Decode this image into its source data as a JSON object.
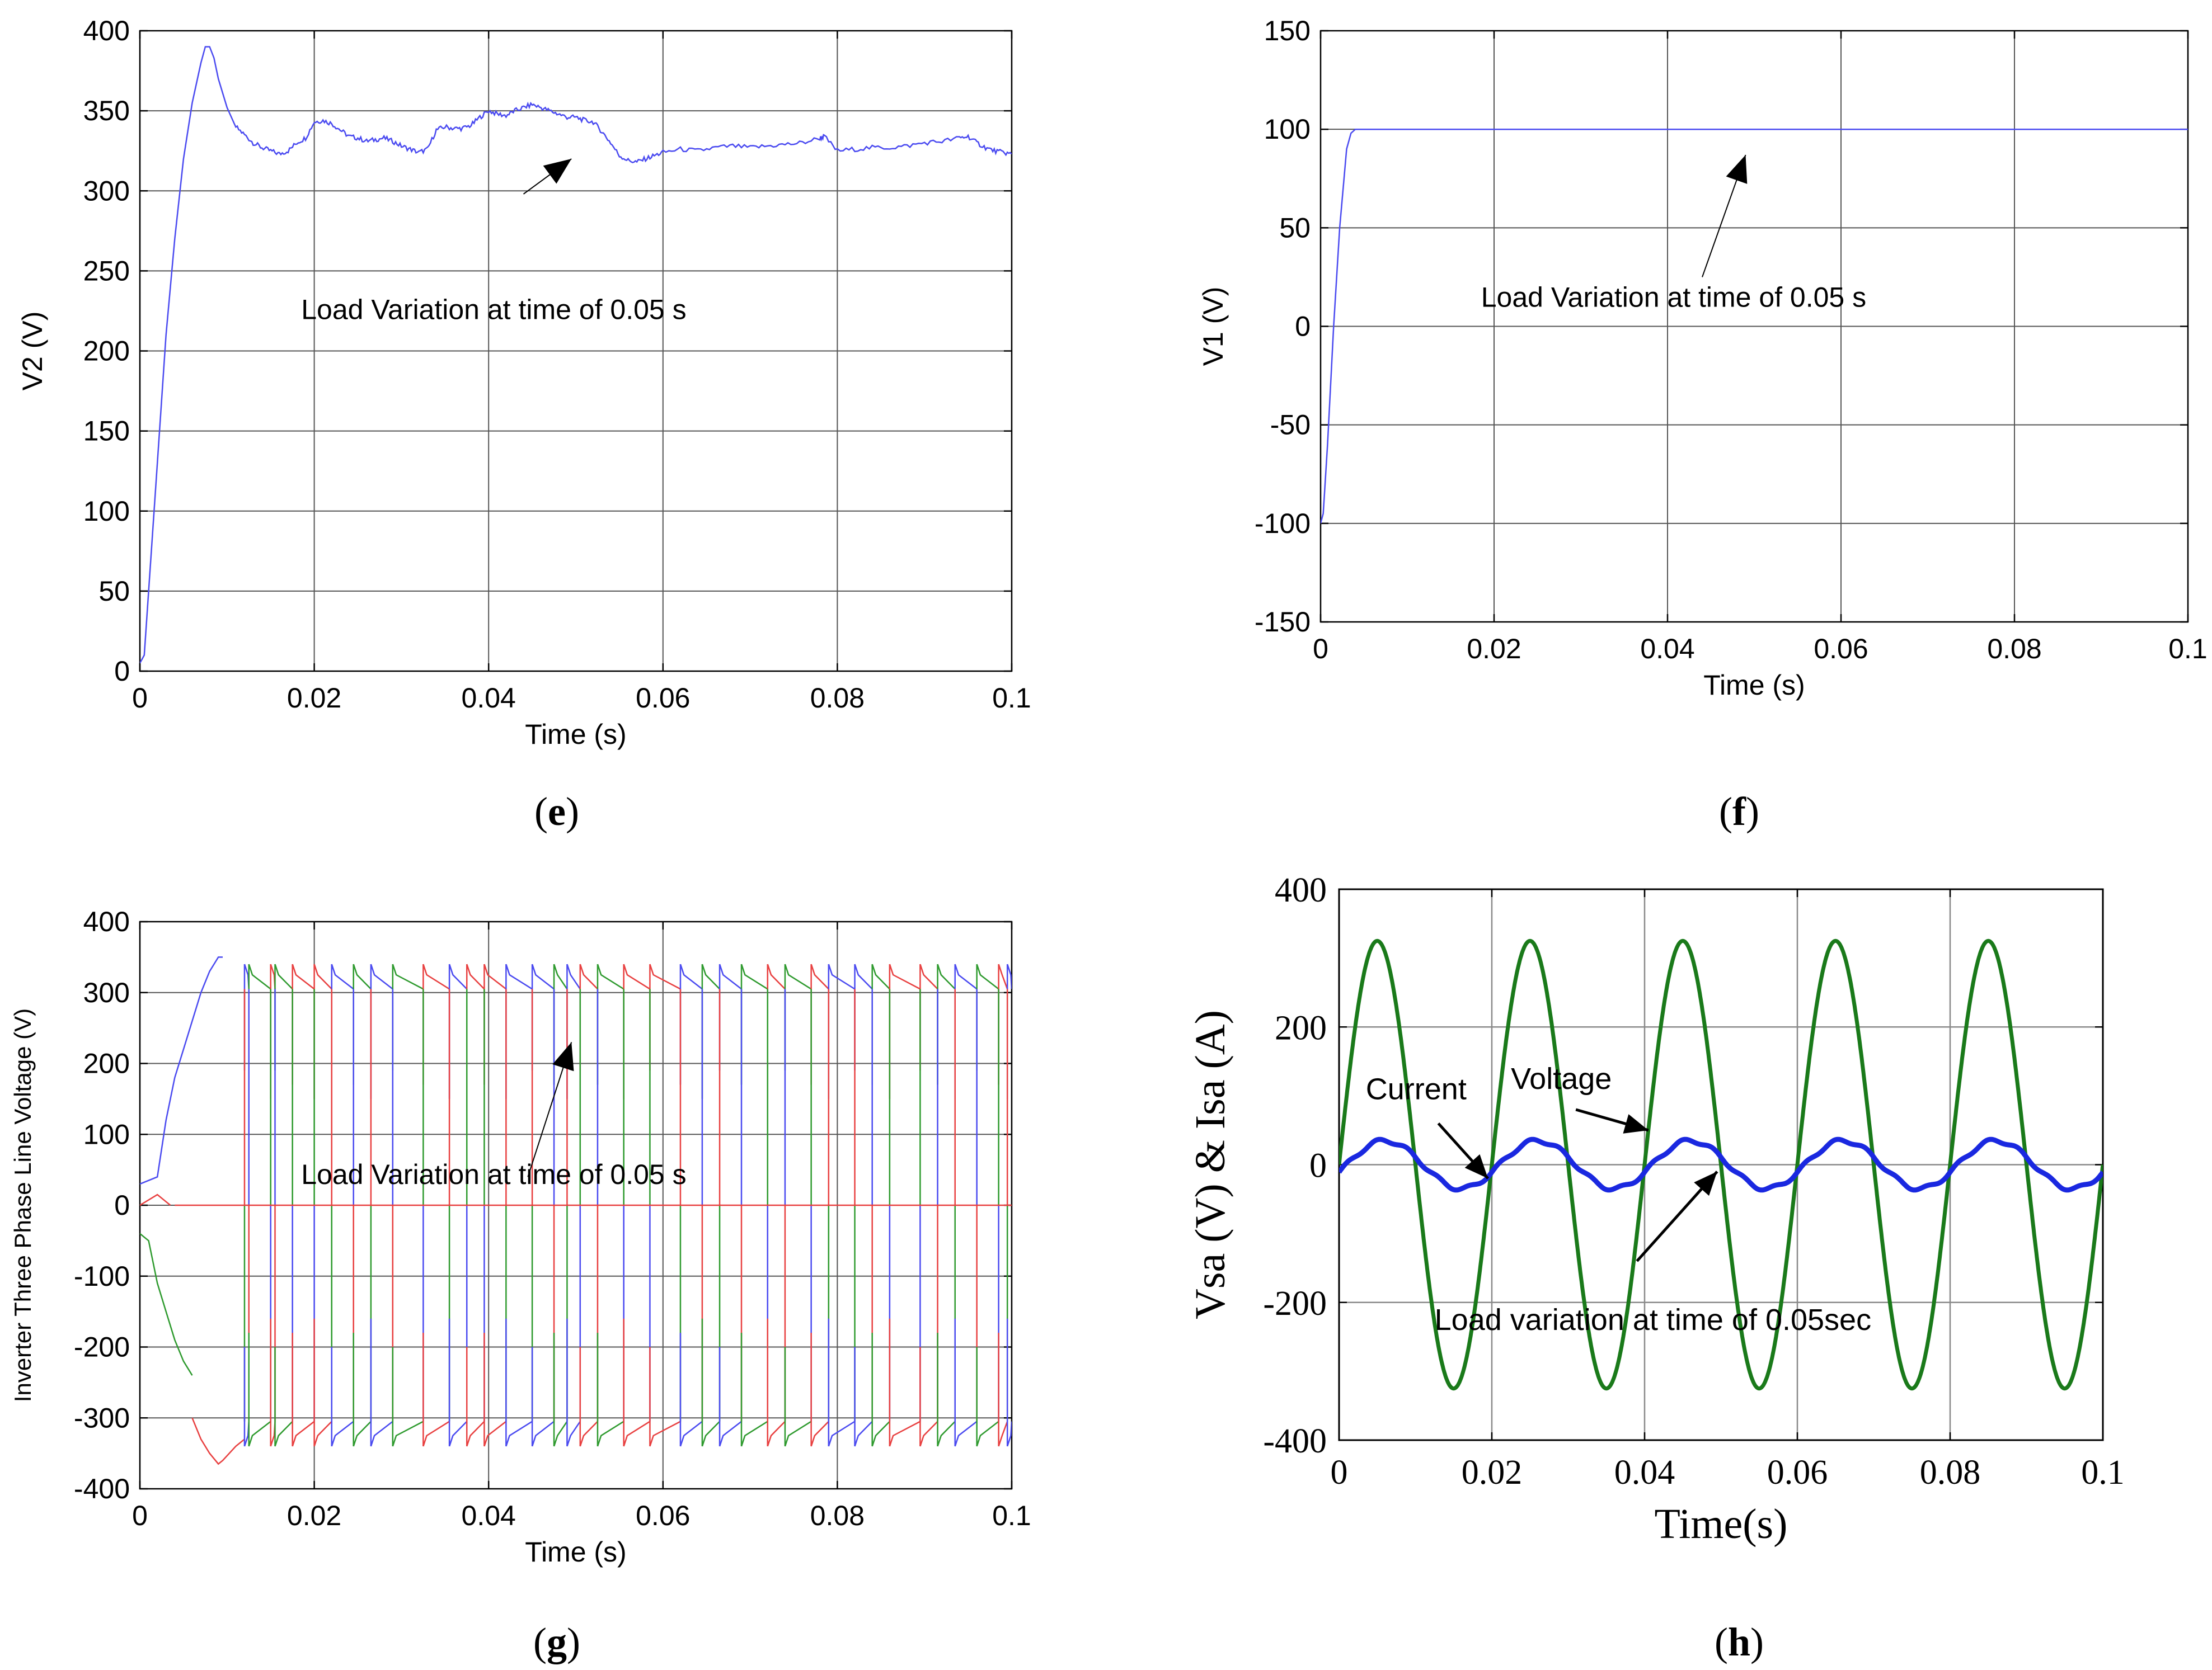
{
  "chart_data": [
    {
      "id": "e",
      "type": "line",
      "panel_label": "e",
      "xlabel": "Time (s)",
      "ylabel": "V2 (V)",
      "xlim": [
        0,
        0.1
      ],
      "ylim": [
        0,
        400
      ],
      "xticks": [
        0,
        0.02,
        0.04,
        0.06,
        0.08,
        0.1
      ],
      "xtick_labels": [
        "0",
        "0.02",
        "0.04",
        "0.06",
        "0.08",
        "0.1"
      ],
      "yticks": [
        0,
        50,
        100,
        150,
        200,
        250,
        300,
        350,
        400
      ],
      "ytick_labels": [
        "0",
        "50",
        "100",
        "150",
        "200",
        "250",
        "300",
        "350",
        "400"
      ],
      "grid": true,
      "annotation": {
        "text": "Load Variation at time of 0.05 s",
        "text_at": [
          0.0185,
          220
        ],
        "arrow_from": [
          0.044,
          298
        ],
        "arrow_to": [
          0.0495,
          320
        ]
      },
      "series": [
        {
          "name": "V2",
          "color": "#4a4af0",
          "x": [
            0,
            0.0005,
            0.001,
            0.002,
            0.003,
            0.004,
            0.005,
            0.006,
            0.007,
            0.0075,
            0.008,
            0.0085,
            0.009,
            0.01,
            0.011,
            0.012,
            0.013,
            0.014,
            0.015,
            0.016,
            0.017,
            0.018,
            0.019,
            0.02,
            0.021,
            0.022,
            0.023,
            0.024,
            0.025,
            0.026,
            0.027,
            0.028,
            0.029,
            0.03,
            0.031,
            0.032,
            0.033,
            0.034,
            0.035,
            0.036,
            0.037,
            0.038,
            0.039,
            0.04,
            0.041,
            0.042,
            0.043,
            0.044,
            0.045,
            0.046,
            0.047,
            0.048,
            0.049,
            0.05,
            0.051,
            0.052,
            0.053,
            0.054,
            0.055,
            0.056,
            0.057,
            0.058,
            0.059,
            0.06,
            0.062,
            0.064,
            0.066,
            0.068,
            0.07,
            0.072,
            0.074,
            0.076,
            0.078,
            0.0785,
            0.08,
            0.082,
            0.084,
            0.086,
            0.088,
            0.09,
            0.092,
            0.094,
            0.095,
            0.096,
            0.097,
            0.098,
            0.099,
            0.1
          ],
          "y": [
            5,
            10,
            50,
            130,
            210,
            270,
            320,
            355,
            380,
            390,
            390,
            383,
            370,
            352,
            340,
            335,
            330,
            327,
            325,
            323,
            325,
            330,
            333,
            343,
            344,
            342,
            338,
            334,
            333,
            331,
            332,
            333,
            331,
            328,
            326,
            324,
            326,
            338,
            340,
            339,
            339,
            341,
            346,
            350,
            348,
            347,
            350,
            352,
            354,
            352,
            350,
            348,
            346,
            346,
            344,
            343,
            337,
            330,
            322,
            319,
            318,
            320,
            322,
            324,
            326,
            325,
            327,
            328,
            327,
            328,
            329,
            330,
            333,
            334,
            325,
            326,
            327,
            327,
            328,
            330,
            331,
            333,
            334,
            330,
            327,
            325,
            324,
            323
          ]
        }
      ]
    },
    {
      "id": "f",
      "type": "line",
      "panel_label": "f",
      "xlabel": "Time (s)",
      "ylabel": "V1 (V)",
      "xlim": [
        0,
        0.1
      ],
      "ylim": [
        -150,
        150
      ],
      "xticks": [
        0,
        0.02,
        0.04,
        0.06,
        0.08,
        0.1
      ],
      "xtick_labels": [
        "0",
        "0.02",
        "0.04",
        "0.06",
        "0.08",
        "0.1"
      ],
      "yticks": [
        -150,
        -100,
        -50,
        0,
        50,
        100,
        150
      ],
      "ytick_labels": [
        "-150",
        "-100",
        "-50",
        "0",
        "50",
        "100",
        "150"
      ],
      "grid": true,
      "annotation": {
        "text": "Load Variation at time of 0.05 s",
        "text_at": [
          0.0185,
          10
        ],
        "arrow_from": [
          0.044,
          25
        ],
        "arrow_to": [
          0.049,
          87
        ]
      },
      "series": [
        {
          "name": "V1",
          "color": "#4a4af0",
          "x": [
            0,
            0.0003,
            0.0008,
            0.0015,
            0.0022,
            0.003,
            0.0035,
            0.004,
            0.1
          ],
          "y": [
            -100,
            -95,
            -60,
            0,
            50,
            90,
            98,
            100,
            100
          ]
        }
      ]
    },
    {
      "id": "g",
      "type": "line",
      "panel_label": "g",
      "xlabel": "Time (s)",
      "ylabel": "Inverter Three Phase Line Voltage (V)",
      "xlim": [
        0,
        0.1
      ],
      "ylim": [
        -400,
        400
      ],
      "xticks": [
        0,
        0.02,
        0.04,
        0.06,
        0.08,
        0.1
      ],
      "xtick_labels": [
        "0",
        "0.02",
        "0.04",
        "0.06",
        "0.08",
        "0.1"
      ],
      "yticks": [
        -400,
        -300,
        -200,
        -100,
        0,
        100,
        200,
        300,
        400
      ],
      "ytick_labels": [
        "-400",
        "-300",
        "-200",
        "-100",
        "0",
        "100",
        "200",
        "300",
        "400"
      ],
      "grid": true,
      "annotation": {
        "text": "Load Variation at time of 0.05 s",
        "text_at": [
          0.0185,
          30
        ],
        "arrow_from": [
          0.0445,
          40
        ],
        "arrow_to": [
          0.0495,
          230
        ]
      },
      "phase_colors": [
        "#4a4af0",
        "#e84040",
        "#2e9a2e"
      ],
      "pulse_edges": [
        {
          "t": 0.012,
          "phase": 0
        },
        {
          "t": 0.0125,
          "phase": 2
        },
        {
          "t": 0.015,
          "phase": 1
        },
        {
          "t": 0.0155,
          "phase": 2
        },
        {
          "t": 0.0175,
          "phase": 1
        },
        {
          "t": 0.02,
          "phase": 1
        },
        {
          "t": 0.022,
          "phase": 0
        },
        {
          "t": 0.0245,
          "phase": 2
        },
        {
          "t": 0.0265,
          "phase": 0
        },
        {
          "t": 0.029,
          "phase": 2
        },
        {
          "t": 0.0325,
          "phase": 1
        },
        {
          "t": 0.0355,
          "phase": 0
        },
        {
          "t": 0.0375,
          "phase": 1
        },
        {
          "t": 0.0395,
          "phase": 1
        },
        {
          "t": 0.042,
          "phase": 0
        },
        {
          "t": 0.045,
          "phase": 0
        },
        {
          "t": 0.0475,
          "phase": 2
        },
        {
          "t": 0.049,
          "phase": 0
        },
        {
          "t": 0.0505,
          "phase": 1
        },
        {
          "t": 0.0525,
          "phase": 2
        },
        {
          "t": 0.0555,
          "phase": 1
        },
        {
          "t": 0.0585,
          "phase": 1
        },
        {
          "t": 0.062,
          "phase": 0
        },
        {
          "t": 0.0645,
          "phase": 2
        },
        {
          "t": 0.0665,
          "phase": 0
        },
        {
          "t": 0.069,
          "phase": 2
        },
        {
          "t": 0.072,
          "phase": 1
        },
        {
          "t": 0.074,
          "phase": 2
        },
        {
          "t": 0.077,
          "phase": 1
        },
        {
          "t": 0.079,
          "phase": 0
        },
        {
          "t": 0.082,
          "phase": 0
        },
        {
          "t": 0.084,
          "phase": 2
        },
        {
          "t": 0.086,
          "phase": 1
        },
        {
          "t": 0.0895,
          "phase": 1
        },
        {
          "t": 0.0915,
          "phase": 2
        },
        {
          "t": 0.0935,
          "phase": 0
        },
        {
          "t": 0.096,
          "phase": 2
        },
        {
          "t": 0.0985,
          "phase": 1
        },
        {
          "t": 0.0995,
          "phase": 0
        }
      ],
      "startup": {
        "blue_x": [
          0,
          0.002,
          0.003,
          0.004,
          0.005,
          0.006,
          0.007,
          0.008,
          0.009,
          0.0095
        ],
        "blue_y": [
          30,
          40,
          120,
          180,
          220,
          260,
          300,
          330,
          350,
          350
        ],
        "green_x": [
          0,
          0.001,
          0.002,
          0.003,
          0.004,
          0.005,
          0.006
        ],
        "green_y": [
          -40,
          -50,
          -110,
          -150,
          -190,
          -220,
          -240
        ],
        "red_x": [
          0.006,
          0.007,
          0.008,
          0.009,
          0.0095,
          0.011,
          0.012
        ],
        "red_y": [
          -300,
          -330,
          -350,
          -365,
          -360,
          -340,
          -330
        ]
      },
      "levels": [
        320,
        -320
      ]
    },
    {
      "id": "h",
      "type": "line",
      "panel_label": "h",
      "xlabel": "Time(s)",
      "ylabel": "Vsa (V) & Isa (A)",
      "xlim": [
        0,
        0.1
      ],
      "ylim": [
        -400,
        400
      ],
      "xticks": [
        0,
        0.02,
        0.04,
        0.06,
        0.08,
        0.1
      ],
      "xtick_labels": [
        "0",
        "0.02",
        "0.04",
        "0.06",
        "0.08",
        "0.1"
      ],
      "yticks": [
        -400,
        -200,
        0,
        200,
        400
      ],
      "ytick_labels": [
        "-400",
        "-200",
        "0",
        "200",
        "400"
      ],
      "grid": true,
      "annotations": [
        {
          "text": "Current",
          "text_at": [
            0.0035,
            95
          ],
          "arrow_from": [
            0.013,
            60
          ],
          "arrow_to": [
            0.0195,
            -20
          ]
        },
        {
          "text": "Voltage",
          "text_at": [
            0.0225,
            110
          ],
          "arrow_from": [
            0.031,
            80
          ],
          "arrow_to": [
            0.0405,
            50
          ]
        },
        {
          "text": "Load variation  at time of 0.05sec",
          "text_at": [
            0.0125,
            -240
          ],
          "arrow_from": [
            0.039,
            -140
          ],
          "arrow_to": [
            0.0495,
            -10
          ]
        }
      ],
      "series": [
        {
          "name": "Voltage",
          "color": "#1a7a1a",
          "kind": "sine",
          "amplitude": 325,
          "frequency_hz": 50,
          "phase": 0
        },
        {
          "name": "Current",
          "color": "#1a28e0",
          "kind": "sine",
          "amplitude": 35,
          "frequency_hz": 50,
          "phase_shift": 0.001
        }
      ]
    }
  ]
}
